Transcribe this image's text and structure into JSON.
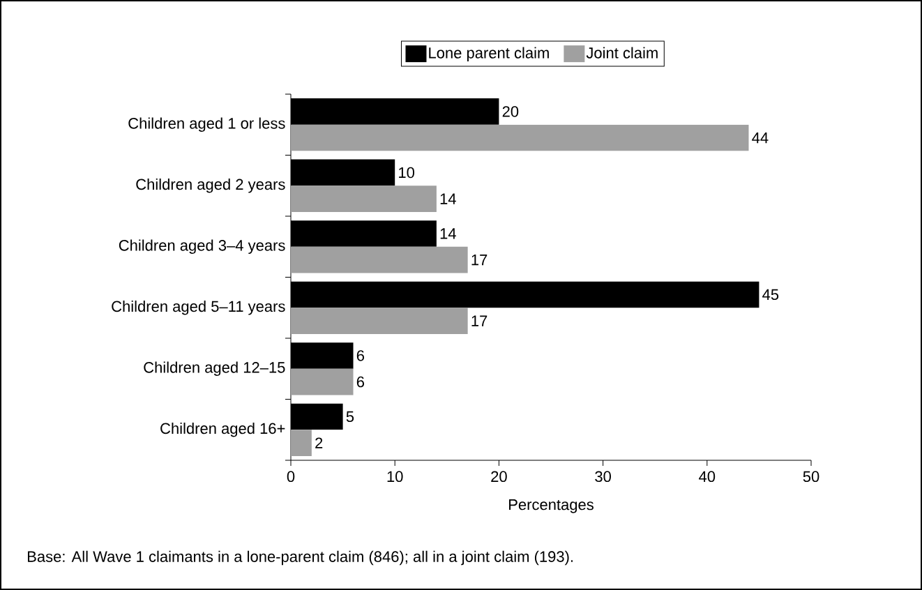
{
  "chart_data": {
    "type": "bar",
    "orientation": "horizontal",
    "xlabel": "Percentages",
    "categories": [
      "Children aged 1 or less",
      "Children aged 2 years",
      "Children aged 3–4 years",
      "Children aged 5–11 years",
      "Children aged 12–15",
      "Children aged 16+"
    ],
    "series": [
      {
        "name": "Lone parent claim",
        "color": "#000000",
        "values": [
          20,
          10,
          14,
          45,
          6,
          5
        ]
      },
      {
        "name": "Joint claim",
        "color": "#a0a0a0",
        "values": [
          44,
          14,
          17,
          17,
          6,
          2
        ]
      }
    ],
    "xlim": [
      0,
      50
    ],
    "xticks": [
      0,
      10,
      20,
      30,
      40,
      50
    ],
    "data_labels": true,
    "legend": "top",
    "grid": false,
    "annotations": [
      "Base: All Wave 1 claimants in a lone-parent claim (846); all in a joint claim (193)."
    ]
  }
}
